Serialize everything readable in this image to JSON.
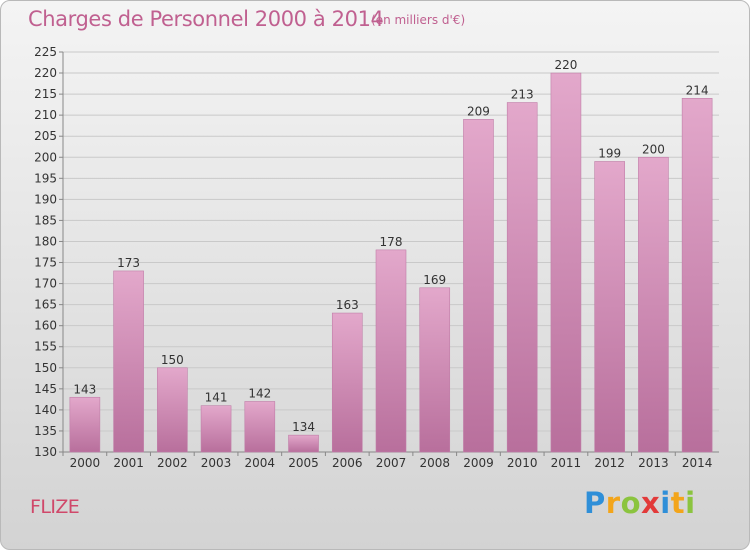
{
  "header": {
    "title": "Charges de Personnel 2000 à 2014",
    "unit": "(en milliers d'€)"
  },
  "footer": {
    "commune": "FLIZE",
    "logo_letters": [
      {
        "ch": "P",
        "color": "#2f8fd8"
      },
      {
        "ch": "r",
        "color": "#f3a51b"
      },
      {
        "ch": "o",
        "color": "#8bc43f"
      },
      {
        "ch": "x",
        "color": "#e23a3a"
      },
      {
        "ch": "i",
        "color": "#2f8fd8"
      },
      {
        "ch": "t",
        "color": "#f3a51b"
      },
      {
        "ch": "i",
        "color": "#8bc43f"
      }
    ]
  },
  "colors": {
    "bar_top": "#e3a8cb",
    "bar_bottom": "#b86f9c",
    "title": "#c06090",
    "axis_text": "#333333",
    "grid": "#c9c9c9"
  },
  "chart_data": {
    "type": "bar",
    "categories": [
      "2000",
      "2001",
      "2002",
      "2003",
      "2004",
      "2005",
      "2006",
      "2007",
      "2008",
      "2009",
      "2010",
      "2011",
      "2012",
      "2013",
      "2014"
    ],
    "values": [
      143,
      173,
      150,
      141,
      142,
      134,
      163,
      178,
      169,
      209,
      213,
      220,
      199,
      200,
      214
    ],
    "title": "Charges de Personnel 2000 à 2014",
    "subtitle": "(en milliers d'€)",
    "ylim": [
      130,
      225
    ],
    "ytick_step": 5,
    "grid": true
  }
}
